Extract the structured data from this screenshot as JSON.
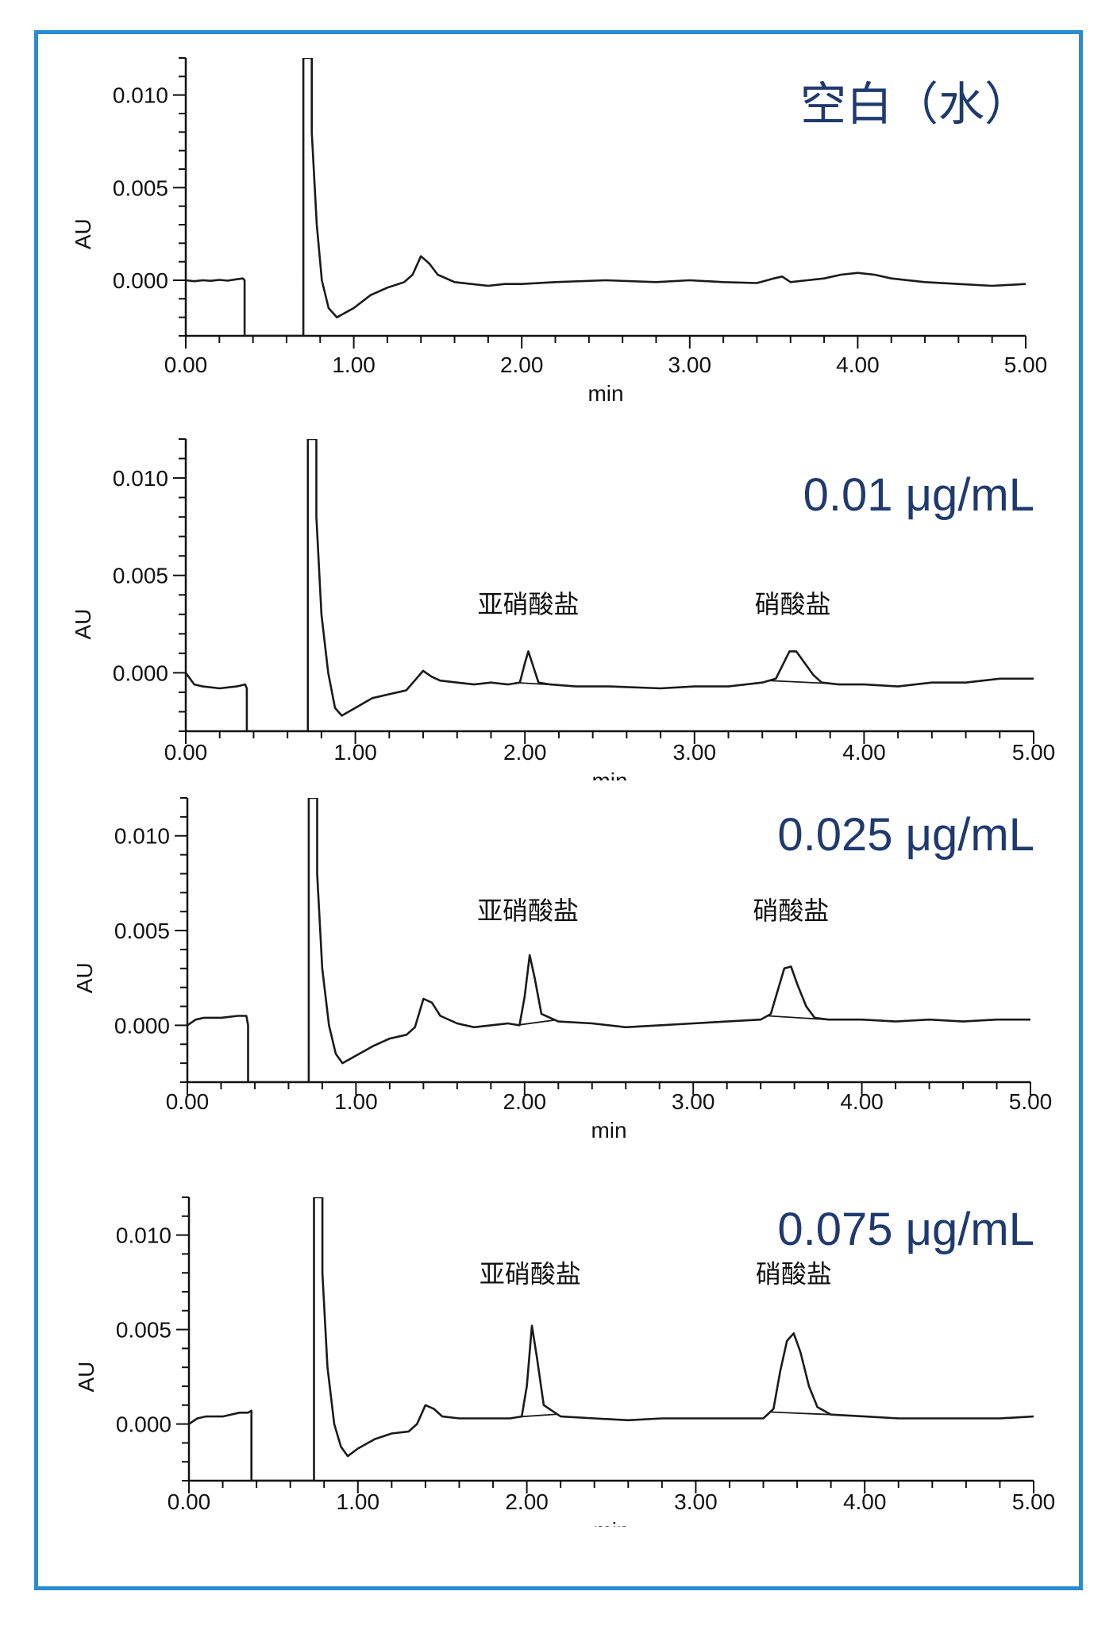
{
  "colors": {
    "frame": "#2a8bd1",
    "title": "#1f3a6e",
    "trace": "#1a1a1a"
  },
  "chart_data": [
    {
      "type": "line",
      "title": "空白（水）",
      "xlabel": "min",
      "ylabel": "AU",
      "xlim": [
        0,
        5
      ],
      "ylim": [
        -0.003,
        0.012
      ],
      "xticks": [
        "0.00",
        "1.00",
        "2.00",
        "3.00",
        "4.00",
        "5.00"
      ],
      "yticks": [
        "0.000",
        "0.005",
        "0.010"
      ],
      "grid": false,
      "series": [
        {
          "x": [
            0,
            0.05,
            0.1,
            0.15,
            0.2,
            0.25,
            0.3,
            0.34,
            0.35,
            0.35,
            0.7,
            0.7,
            0.75,
            0.75,
            0.78,
            0.81,
            0.85,
            0.9,
            1.0,
            1.1,
            1.2,
            1.3,
            1.35,
            1.4,
            1.45,
            1.5,
            1.6,
            1.7,
            1.8,
            1.9,
            2.0,
            2.2,
            2.5,
            2.8,
            3.0,
            3.2,
            3.4,
            3.5,
            3.55,
            3.6,
            3.7,
            3.8,
            3.9,
            4.0,
            4.1,
            4.2,
            4.4,
            4.6,
            4.8,
            5.0
          ],
          "y": [
            0.0,
            -5e-05,
            0.0,
            -3e-05,
            2e-05,
            -2e-05,
            5e-05,
            0.0001,
            0.0,
            -0.003,
            -0.003,
            0.012,
            0.012,
            0.008,
            0.003,
            0.0,
            -0.0015,
            -0.002,
            -0.0015,
            -0.0008,
            -0.0004,
            -0.0001,
            0.0003,
            0.0013,
            0.0009,
            0.0003,
            -0.0001,
            -0.0002,
            -0.0003,
            -0.0002,
            -0.0002,
            -0.0001,
            0.0,
            -0.0001,
            0.0,
            -0.0001,
            -0.00015,
            0.0001,
            0.0002,
            -0.0001,
            0.0,
            0.0001,
            0.0003,
            0.0004,
            0.0003,
            0.0001,
            -0.0001,
            -0.0002,
            -0.0003,
            -0.0002
          ]
        }
      ]
    },
    {
      "type": "line",
      "title": "0.01 μg/mL",
      "xlabel": "min",
      "ylabel": "AU",
      "xlim": [
        0,
        5
      ],
      "ylim": [
        -0.003,
        0.012
      ],
      "xticks": [
        "0.00",
        "1.00",
        "2.00",
        "3.00",
        "4.00",
        "5.00"
      ],
      "yticks": [
        "0.000",
        "0.005",
        "0.010"
      ],
      "grid": false,
      "annotations": [
        {
          "text": "亚硝酸盐",
          "x": 2.02,
          "y": 0.0025
        },
        {
          "text": "硝酸盐",
          "x": 3.58,
          "y": 0.0025
        }
      ],
      "series": [
        {
          "x": [
            0,
            0.05,
            0.1,
            0.2,
            0.3,
            0.35,
            0.36,
            0.36,
            0.72,
            0.72,
            0.77,
            0.77,
            0.8,
            0.84,
            0.88,
            0.92,
            1.0,
            1.1,
            1.2,
            1.3,
            1.35,
            1.4,
            1.45,
            1.5,
            1.6,
            1.7,
            1.8,
            1.9,
            1.97,
            2.0,
            2.02,
            2.05,
            2.08,
            2.15,
            2.3,
            2.5,
            2.8,
            3.0,
            3.2,
            3.4,
            3.48,
            3.52,
            3.56,
            3.6,
            3.65,
            3.7,
            3.75,
            3.85,
            4.0,
            4.2,
            4.4,
            4.6,
            4.8,
            5.0
          ],
          "y": [
            0.0,
            -0.0006,
            -0.0007,
            -0.0008,
            -0.0007,
            -0.0006,
            -0.0008,
            -0.003,
            -0.003,
            0.012,
            0.012,
            0.008,
            0.003,
            0.0,
            -0.0018,
            -0.0022,
            -0.0018,
            -0.0013,
            -0.0011,
            -0.0009,
            -0.0004,
            0.0001,
            -0.0002,
            -0.0004,
            -0.0005,
            -0.0006,
            -0.0005,
            -0.0006,
            -0.0005,
            0.0005,
            0.0011,
            0.0003,
            -0.0005,
            -0.0006,
            -0.0007,
            -0.0007,
            -0.0008,
            -0.0007,
            -0.0007,
            -0.0005,
            -0.0003,
            0.0004,
            0.0011,
            0.0011,
            0.0005,
            -0.0001,
            -0.0005,
            -0.0006,
            -0.0006,
            -0.0007,
            -0.0005,
            -0.0005,
            -0.0003,
            -0.0003
          ]
        }
      ]
    },
    {
      "type": "line",
      "title": "0.025 μg/mL",
      "xlabel": "min",
      "ylabel": "AU",
      "xlim": [
        0,
        5
      ],
      "ylim": [
        -0.003,
        0.012
      ],
      "xticks": [
        "0.00",
        "1.00",
        "2.00",
        "3.00",
        "4.00",
        "5.00"
      ],
      "yticks": [
        "0.000",
        "0.005",
        "0.010"
      ],
      "grid": false,
      "annotations": [
        {
          "text": "亚硝酸盐",
          "x": 2.02,
          "y": 0.005
        },
        {
          "text": "硝酸盐",
          "x": 3.58,
          "y": 0.005
        }
      ],
      "series": [
        {
          "x": [
            0,
            0.05,
            0.1,
            0.2,
            0.3,
            0.35,
            0.36,
            0.36,
            0.72,
            0.72,
            0.77,
            0.77,
            0.8,
            0.84,
            0.88,
            0.92,
            1.0,
            1.1,
            1.2,
            1.3,
            1.35,
            1.4,
            1.45,
            1.5,
            1.6,
            1.7,
            1.8,
            1.9,
            1.97,
            2.0,
            2.03,
            2.06,
            2.1,
            2.2,
            2.4,
            2.6,
            2.8,
            3.0,
            3.2,
            3.4,
            3.46,
            3.5,
            3.54,
            3.58,
            3.62,
            3.67,
            3.72,
            3.8,
            4.0,
            4.2,
            4.4,
            4.6,
            4.8,
            5.0
          ],
          "y": [
            0.0,
            0.0003,
            0.0004,
            0.0004,
            0.0005,
            0.0005,
            0.0,
            -0.003,
            -0.003,
            0.012,
            0.012,
            0.008,
            0.003,
            0.0,
            -0.0015,
            -0.002,
            -0.0016,
            -0.0011,
            -0.0007,
            -0.0005,
            -0.0001,
            0.0014,
            0.0012,
            0.0005,
            0.0001,
            -0.0001,
            0.0,
            0.0001,
            0.0,
            0.0015,
            0.0037,
            0.0025,
            0.0006,
            0.0002,
            0.0001,
            -0.0001,
            0.0,
            0.0001,
            0.0002,
            0.0003,
            0.0006,
            0.0018,
            0.003,
            0.0031,
            0.0021,
            0.001,
            0.0004,
            0.0003,
            0.0003,
            0.0002,
            0.0003,
            0.0002,
            0.0003,
            0.0003
          ]
        }
      ]
    },
    {
      "type": "line",
      "title": "0.075 μg/mL",
      "xlabel": "min",
      "ylabel": "AU",
      "xlim": [
        0,
        5
      ],
      "ylim": [
        -0.003,
        0.012
      ],
      "xticks": [
        "0.00",
        "1.00",
        "2.00",
        "3.00",
        "4.00",
        "5.00"
      ],
      "yticks": [
        "0.000",
        "0.005",
        "0.010"
      ],
      "grid": false,
      "annotations": [
        {
          "text": "亚硝酸盐",
          "x": 2.02,
          "y": 0.0069
        },
        {
          "text": "硝酸盐",
          "x": 3.58,
          "y": 0.0069
        }
      ],
      "series": [
        {
          "x": [
            0,
            0.05,
            0.1,
            0.2,
            0.3,
            0.35,
            0.37,
            0.37,
            0.74,
            0.74,
            0.79,
            0.79,
            0.82,
            0.86,
            0.9,
            0.94,
            1.0,
            1.1,
            1.2,
            1.3,
            1.35,
            1.4,
            1.45,
            1.5,
            1.6,
            1.7,
            1.8,
            1.9,
            1.97,
            2.0,
            2.03,
            2.06,
            2.1,
            2.2,
            2.4,
            2.6,
            2.8,
            3.0,
            3.2,
            3.4,
            3.46,
            3.5,
            3.54,
            3.58,
            3.62,
            3.67,
            3.72,
            3.8,
            4.0,
            4.2,
            4.4,
            4.6,
            4.8,
            5.0
          ],
          "y": [
            0.0,
            0.0003,
            0.0004,
            0.0004,
            0.0006,
            0.0006,
            0.0007,
            -0.003,
            -0.003,
            0.012,
            0.012,
            0.008,
            0.003,
            0.0,
            -0.0012,
            -0.0017,
            -0.0013,
            -0.0008,
            -0.0005,
            -0.0004,
            0.0,
            0.001,
            0.0008,
            0.0004,
            0.0003,
            0.0003,
            0.0003,
            0.0003,
            0.0004,
            0.002,
            0.0052,
            0.0035,
            0.001,
            0.0004,
            0.0003,
            0.0002,
            0.0003,
            0.0003,
            0.0003,
            0.0003,
            0.0008,
            0.0028,
            0.0044,
            0.0048,
            0.0038,
            0.002,
            0.0009,
            0.0005,
            0.0004,
            0.0003,
            0.0003,
            0.0003,
            0.0003,
            0.0004
          ]
        }
      ]
    }
  ]
}
